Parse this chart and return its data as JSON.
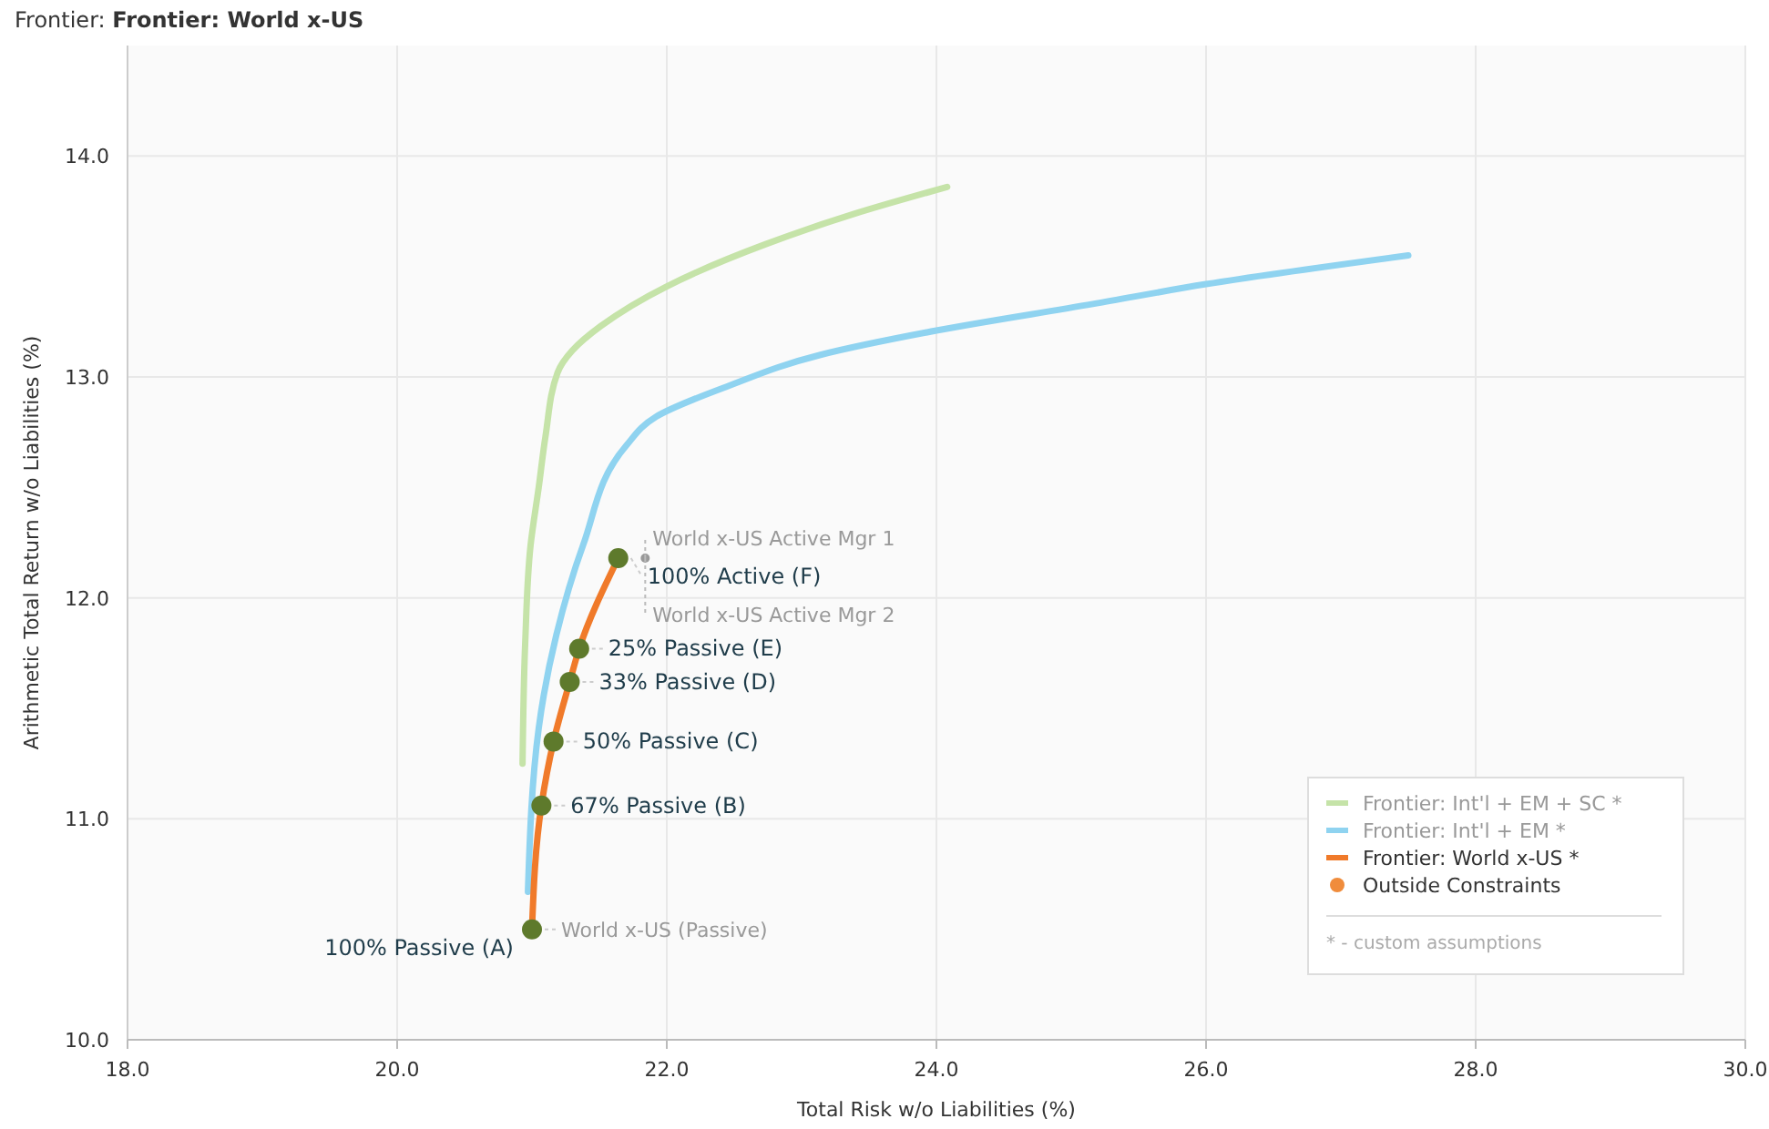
{
  "chart_data": {
    "type": "line",
    "title": "Frontier:",
    "subtitle": "Frontier: World x-US",
    "xlabel": "Total Risk w/o Liabilities (%)",
    "ylabel": "Arithmetic Total Return w/o Liabilities (%)",
    "xlim": [
      18,
      30
    ],
    "xticks": [
      {
        "value": 18,
        "label": "18.0"
      },
      {
        "value": 20,
        "label": "20.0"
      },
      {
        "value": 22,
        "label": "22.0"
      },
      {
        "value": 24,
        "label": "24.0"
      },
      {
        "value": 26,
        "label": "26.0"
      },
      {
        "value": 28,
        "label": "28.0"
      },
      {
        "value": 30,
        "label": "30.0"
      }
    ],
    "ylim": [
      10,
      14.5
    ],
    "yticks": [
      {
        "value": 10,
        "label": "10.0"
      },
      {
        "value": 11,
        "label": "11.0"
      },
      {
        "value": 12,
        "label": "12.0"
      },
      {
        "value": 13,
        "label": "13.0"
      },
      {
        "value": 14,
        "label": "14.0"
      }
    ],
    "grid": true,
    "legend": "bottom right",
    "series": [
      {
        "name": "Frontier: Int'l + EM + SC *",
        "color": "#c5e3a8",
        "x": [
          20.93,
          20.95,
          20.99,
          21.05,
          21.1,
          21.19,
          21.3,
          21.51,
          22.0,
          22.73,
          23.4,
          24.08
        ],
        "values": [
          11.25,
          11.8,
          12.24,
          12.5,
          12.73,
          13.02,
          13.12,
          13.23,
          13.41,
          13.6,
          13.74,
          13.86
        ]
      },
      {
        "name": "Frontier: Int'l + EM *",
        "color": "#8fd3f0",
        "x": [
          20.97,
          21.05,
          21.18,
          21.38,
          21.7,
          21.92,
          22.46,
          23.14,
          24.0,
          25.16,
          26.0,
          27.5
        ],
        "values": [
          10.67,
          11.41,
          11.83,
          12.24,
          12.69,
          12.82,
          12.96,
          13.1,
          13.21,
          13.33,
          13.42,
          13.55
        ]
      },
      {
        "name": "Frontier: World x-US *",
        "color": "#f07a2a",
        "x": [
          21.0,
          21.07,
          21.16,
          21.28,
          21.35,
          21.64
        ],
        "values": [
          10.5,
          11.06,
          11.35,
          11.62,
          11.77,
          12.18
        ]
      },
      {
        "name": "Outside Constraints",
        "color": "#f08c3c",
        "type": "scatter"
      },
      {
        "color": "#5e7a2c",
        "type": "scatter",
        "x": [
          21.0,
          21.07,
          21.16,
          21.28,
          21.35,
          21.64
        ],
        "values": [
          10.5,
          11.06,
          11.35,
          11.62,
          11.77,
          12.18
        ]
      },
      {
        "color": "#999999",
        "type": "scatter",
        "x": [
          21.84
        ],
        "values": [
          12.18
        ]
      }
    ],
    "annotations": [
      {
        "text": "100% Passive (A)",
        "x": 21.0,
        "y": 10.5
      },
      {
        "text": "World x-US (Passive)",
        "x": 21.0,
        "y": 10.5
      },
      {
        "text": "67% Passive (B)",
        "x": 21.07,
        "y": 11.06
      },
      {
        "text": "50% Passive (C)",
        "x": 21.16,
        "y": 11.35
      },
      {
        "text": "33% Passive (D)",
        "x": 21.28,
        "y": 11.62
      },
      {
        "text": "25% Passive (E)",
        "x": 21.35,
        "y": 11.77
      },
      {
        "text": "100% Active (F)",
        "x": 21.64,
        "y": 12.18
      },
      {
        "text": "World x-US Active Mgr 1",
        "x": 21.84,
        "y": 12.18
      },
      {
        "text": "World x-US Active Mgr 2",
        "x": 21.84,
        "y": 12.18
      },
      "* - custom assumptions"
    ]
  }
}
